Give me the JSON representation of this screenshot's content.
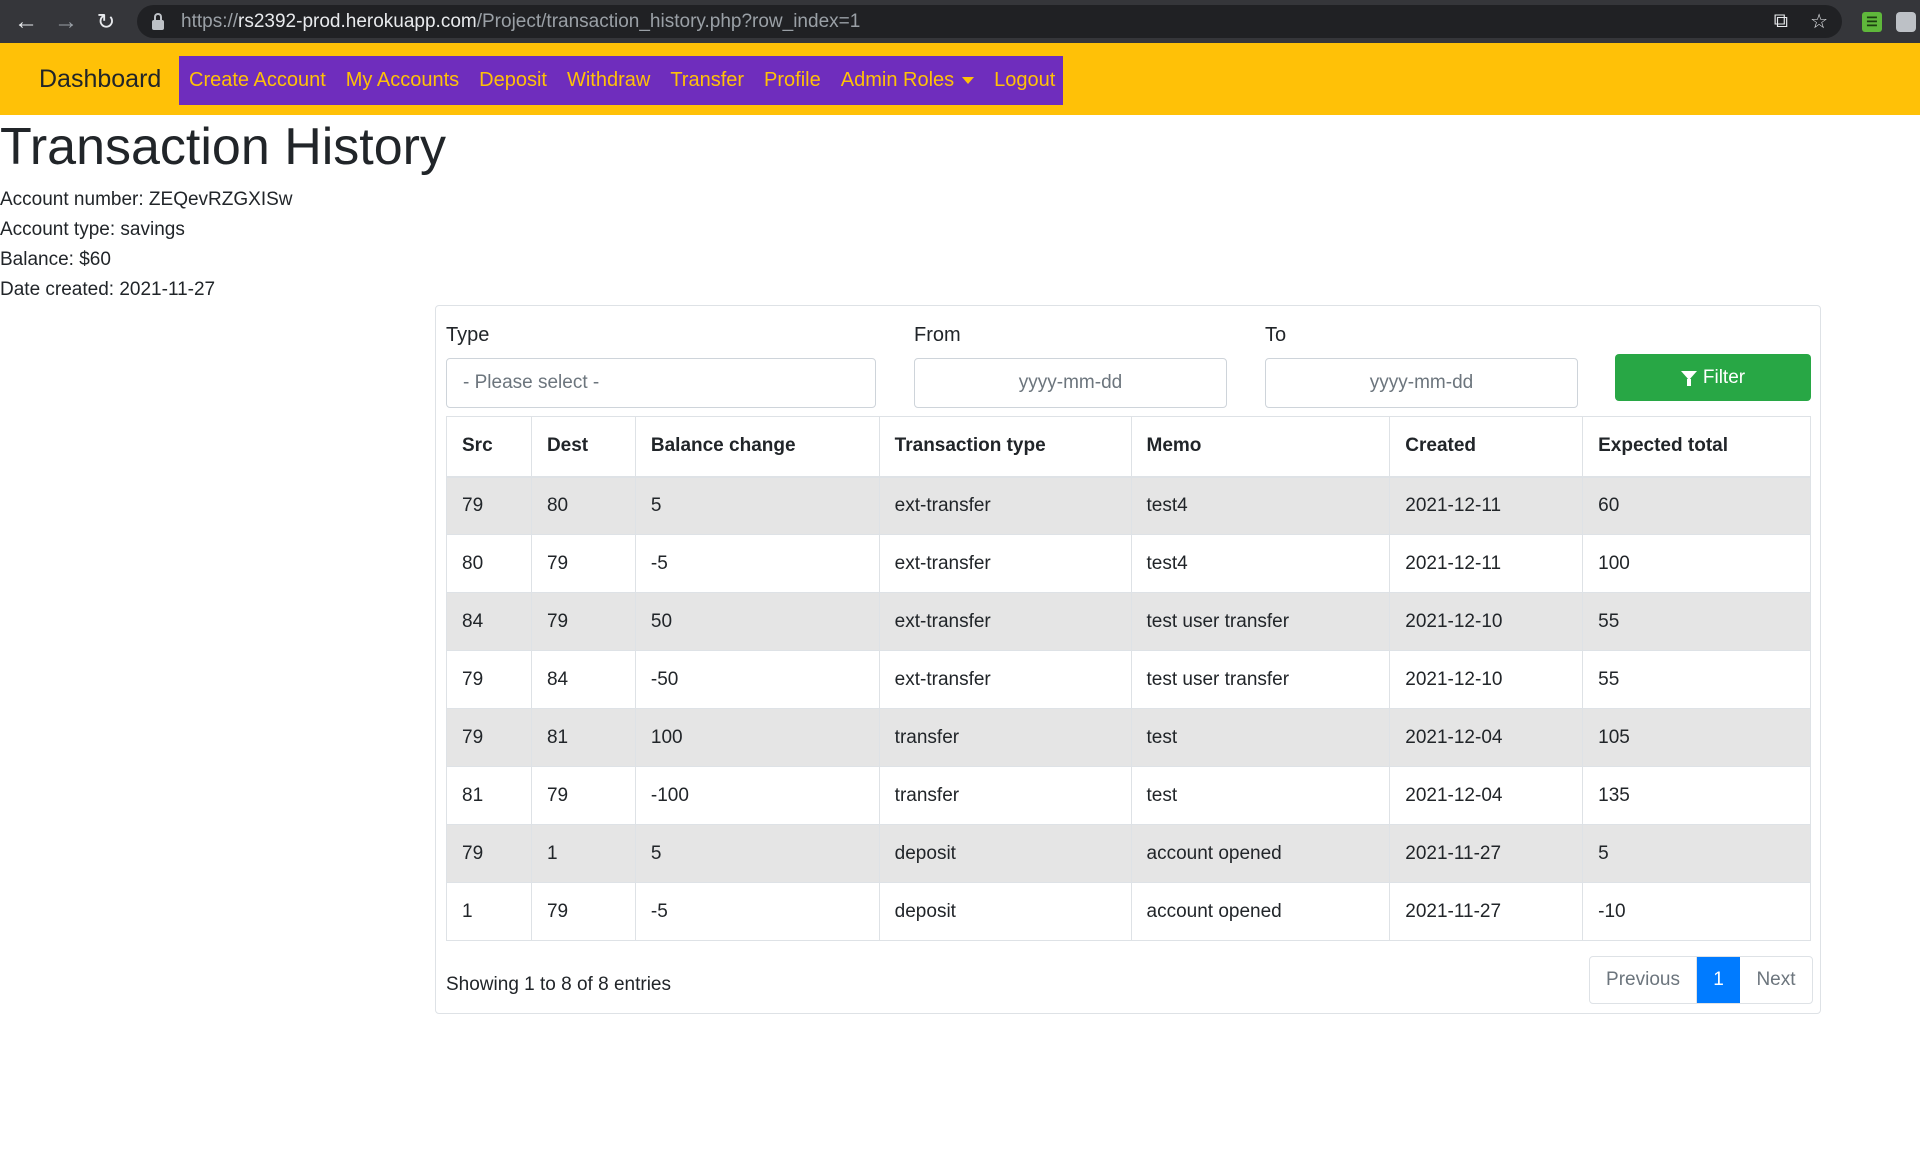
{
  "browser": {
    "url_scheme": "https://",
    "url_host": "rs2392-prod.herokuapp.com",
    "url_path": "/Project/transaction_history.php?row_index=1"
  },
  "navbar": {
    "brand": "Dashboard",
    "links": [
      "Create Account",
      "My Accounts",
      "Deposit",
      "Withdraw",
      "Transfer",
      "Profile",
      "Admin Roles",
      "Logout"
    ]
  },
  "page": {
    "title": "Transaction History",
    "account_number": "Account number: ZEQevRZGXISw",
    "account_type": "Account type: savings",
    "balance": "Balance: $60",
    "date_created": "Date created: 2021-11-27"
  },
  "filter": {
    "type_label": "Type",
    "type_value": "- Please select -",
    "from_label": "From",
    "from_placeholder": "yyyy-mm-dd",
    "to_label": "To",
    "to_placeholder": "yyyy-mm-dd",
    "button_label": "Filter"
  },
  "table": {
    "headers": [
      "Src",
      "Dest",
      "Balance change",
      "Transaction type",
      "Memo",
      "Created",
      "Expected total"
    ],
    "rows": [
      [
        "79",
        "80",
        "5",
        "ext-transfer",
        "test4",
        "2021-12-11",
        "60"
      ],
      [
        "80",
        "79",
        "-5",
        "ext-transfer",
        "test4",
        "2021-12-11",
        "100"
      ],
      [
        "84",
        "79",
        "50",
        "ext-transfer",
        "test user transfer",
        "2021-12-10",
        "55"
      ],
      [
        "79",
        "84",
        "-50",
        "ext-transfer",
        "test user transfer",
        "2021-12-10",
        "55"
      ],
      [
        "79",
        "81",
        "100",
        "transfer",
        "test",
        "2021-12-04",
        "105"
      ],
      [
        "81",
        "79",
        "-100",
        "transfer",
        "test",
        "2021-12-04",
        "135"
      ],
      [
        "79",
        "1",
        "5",
        "deposit",
        "account opened",
        "2021-11-27",
        "5"
      ],
      [
        "1",
        "79",
        "-5",
        "deposit",
        "account opened",
        "2021-11-27",
        "-10"
      ]
    ]
  },
  "pagination": {
    "showing": "Showing 1 to 8 of 8 entries",
    "previous": "Previous",
    "current": "1",
    "next": "Next"
  }
}
